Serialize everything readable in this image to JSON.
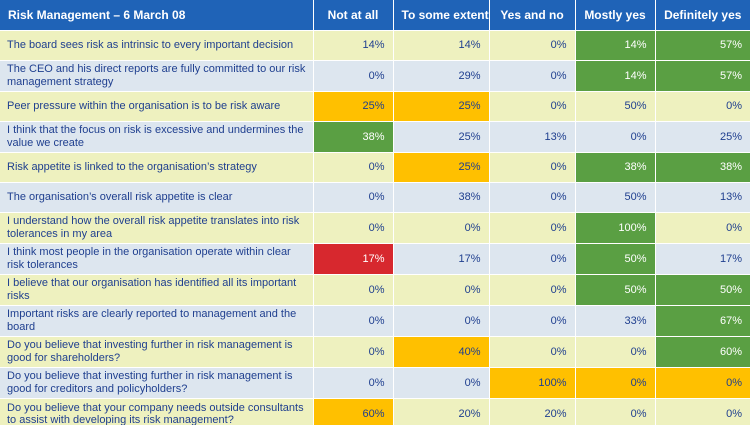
{
  "table": {
    "headers": [
      "Risk Management – 6 March 08",
      "Not at all",
      "To some extent",
      "Yes and no",
      "Mostly yes",
      "Definitely yes"
    ],
    "rows": [
      {
        "statement": "The board sees risk as intrinsic to every important decision",
        "values": [
          "14%",
          "14%",
          "0%",
          "14%",
          "57%"
        ],
        "highlights": [
          "",
          "",
          "",
          "green",
          "green"
        ]
      },
      {
        "statement": "The CEO and his direct reports are fully committed to our risk management strategy",
        "values": [
          "0%",
          "29%",
          "0%",
          "14%",
          "57%"
        ],
        "highlights": [
          "",
          "",
          "",
          "green",
          "green"
        ]
      },
      {
        "statement": "Peer pressure within the organisation is to be risk aware",
        "values": [
          "25%",
          "25%",
          "0%",
          "50%",
          "0%"
        ],
        "highlights": [
          "yellow",
          "yellow",
          "",
          "",
          ""
        ]
      },
      {
        "statement": "I think that the focus on risk is excessive and undermines the value we create",
        "values": [
          "38%",
          "25%",
          "13%",
          "0%",
          "25%"
        ],
        "highlights": [
          "green",
          "",
          "",
          "",
          ""
        ]
      },
      {
        "statement": "Risk appetite is linked to the organisation’s strategy",
        "values": [
          "0%",
          "25%",
          "0%",
          "38%",
          "38%"
        ],
        "highlights": [
          "",
          "yellow",
          "",
          "green",
          "green"
        ]
      },
      {
        "statement": "The organisation’s overall risk appetite is clear",
        "values": [
          "0%",
          "38%",
          "0%",
          "50%",
          "13%"
        ],
        "highlights": [
          "",
          "",
          "",
          "",
          ""
        ]
      },
      {
        "statement": "I understand how the overall risk appetite translates into risk tolerances in my area",
        "values": [
          "0%",
          "0%",
          "0%",
          "100%",
          "0%"
        ],
        "highlights": [
          "",
          "",
          "",
          "green",
          ""
        ]
      },
      {
        "statement": "I think most people in the organisation operate within clear risk tolerances",
        "values": [
          "17%",
          "17%",
          "0%",
          "50%",
          "17%"
        ],
        "highlights": [
          "red",
          "",
          "",
          "green",
          ""
        ]
      },
      {
        "statement": "I believe that our organisation has identified all its important risks",
        "values": [
          "0%",
          "0%",
          "0%",
          "50%",
          "50%"
        ],
        "highlights": [
          "",
          "",
          "",
          "green",
          "green"
        ]
      },
      {
        "statement": "Important risks are clearly reported to management and the board",
        "values": [
          "0%",
          "0%",
          "0%",
          "33%",
          "67%"
        ],
        "highlights": [
          "",
          "",
          "",
          "",
          "green"
        ]
      },
      {
        "statement": "Do you believe that investing further in risk management is good for shareholders?",
        "values": [
          "0%",
          "40%",
          "0%",
          "0%",
          "60%"
        ],
        "highlights": [
          "",
          "yellow",
          "",
          "",
          "green"
        ]
      },
      {
        "statement": "Do you believe that investing further in risk management is good for creditors and policyholders?",
        "values": [
          "0%",
          "0%",
          "100%",
          "0%",
          "0%"
        ],
        "highlights": [
          "",
          "",
          "yellow",
          "yellow",
          "yellow"
        ]
      },
      {
        "statement": "Do you believe that your company needs outside consultants to assist with developing its risk management?",
        "values": [
          "60%",
          "20%",
          "20%",
          "0%",
          "0%"
        ],
        "highlights": [
          "yellow",
          "",
          "",
          "",
          ""
        ]
      }
    ]
  },
  "colors": {
    "header": "#1f63b7",
    "row_odd": "#eef1bf",
    "row_even": "#dde6ef",
    "yellow": "#ffc000",
    "green": "#5a9f43",
    "red": "#d7282e",
    "text": "#1f3f8f"
  }
}
